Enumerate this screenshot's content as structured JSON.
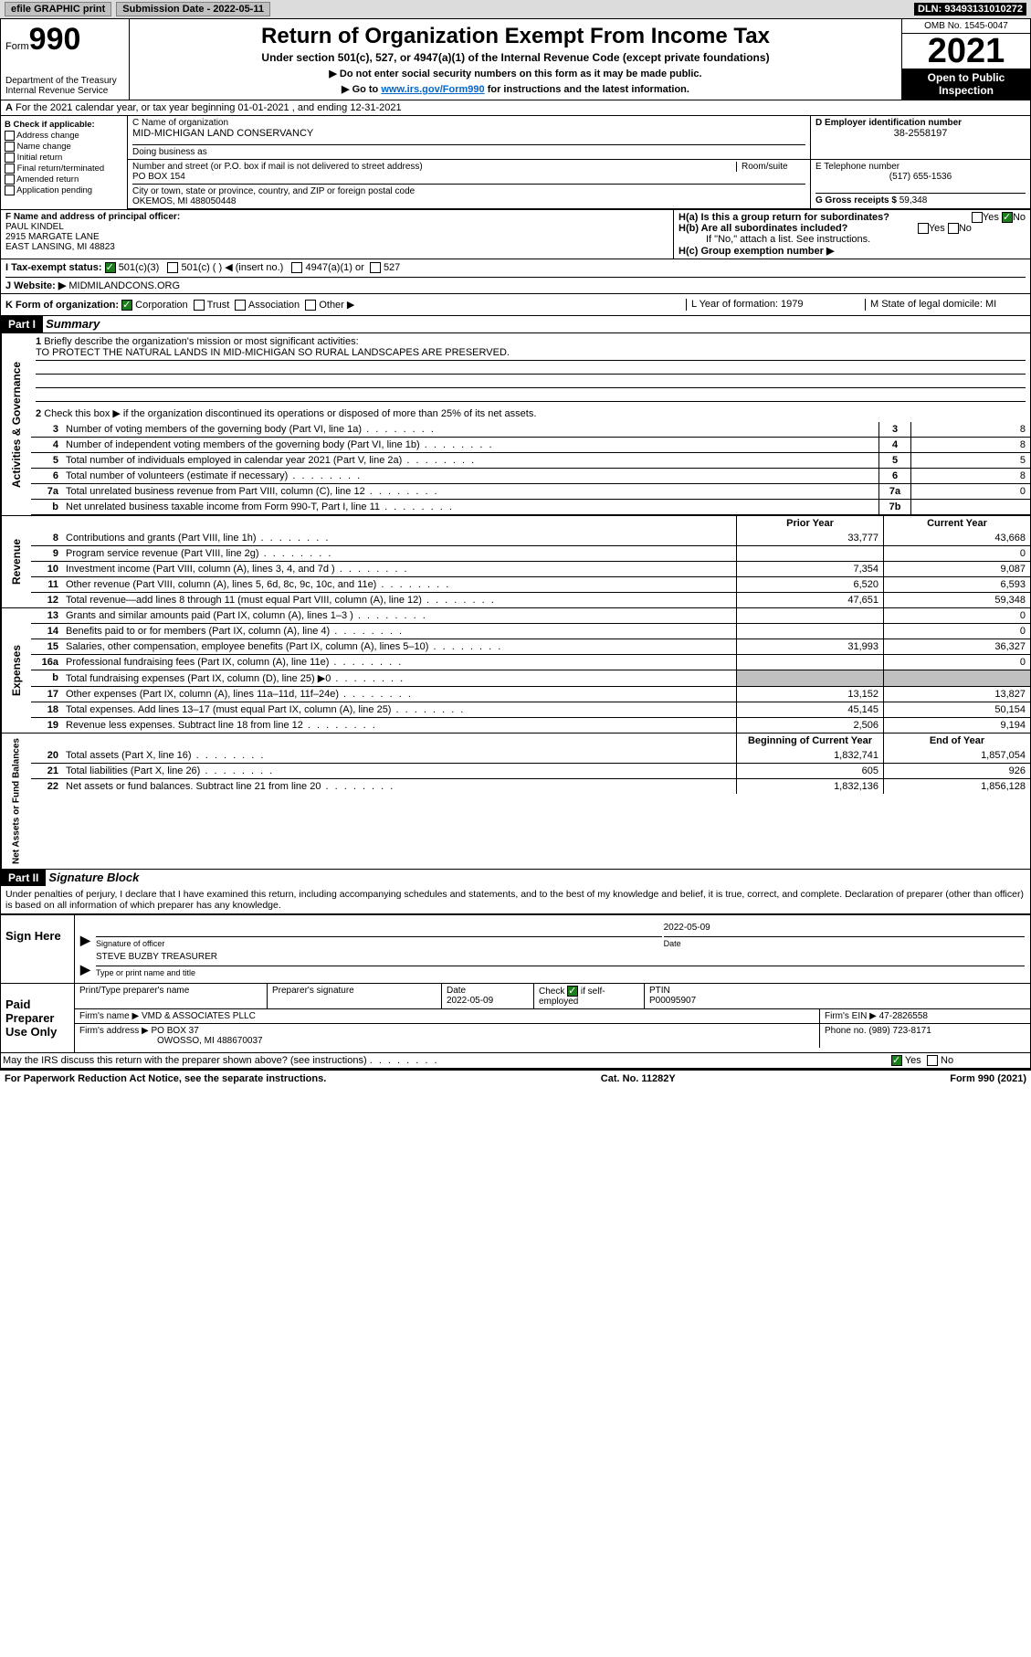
{
  "topbar": {
    "efile": "efile GRAPHIC print",
    "submission": "Submission Date - 2022-05-11",
    "dln": "DLN: 93493131010272"
  },
  "header": {
    "form_label": "Form",
    "form_number": "990",
    "dept": "Department of the Treasury",
    "irs": "Internal Revenue Service",
    "title": "Return of Organization Exempt From Income Tax",
    "sub1": "Under section 501(c), 527, or 4947(a)(1) of the Internal Revenue Code (except private foundations)",
    "sub2": "▶ Do not enter social security numbers on this form as it may be made public.",
    "sub3_pre": "▶ Go to ",
    "sub3_link": "www.irs.gov/Form990",
    "sub3_post": " for instructions and the latest information.",
    "omb": "OMB No. 1545-0047",
    "year": "2021",
    "open": "Open to Public Inspection"
  },
  "rowA": "For the 2021 calendar year, or tax year beginning 01-01-2021   , and ending 12-31-2021",
  "sectionB": {
    "title": "B Check if applicable:",
    "items": [
      "Address change",
      "Name change",
      "Initial return",
      "Final return/terminated",
      "Amended return",
      "Application pending"
    ]
  },
  "sectionC": {
    "name_label": "C Name of organization",
    "name": "MID-MICHIGAN LAND CONSERVANCY",
    "dba_label": "Doing business as",
    "dba": "",
    "addr_label": "Number and street (or P.O. box if mail is not delivered to street address)",
    "room_label": "Room/suite",
    "addr": "PO BOX 154",
    "city_label": "City or town, state or province, country, and ZIP or foreign postal code",
    "city": "OKEMOS, MI  488050448"
  },
  "sectionD": {
    "label": "D Employer identification number",
    "val": "38-2558197"
  },
  "sectionE": {
    "label": "E Telephone number",
    "val": "(517) 655-1536"
  },
  "sectionG": {
    "label": "G Gross receipts $",
    "val": "59,348"
  },
  "sectionF": {
    "label": "F  Name and address of principal officer:",
    "name": "PAUL KINDEL",
    "addr1": "2915 MARGATE LANE",
    "addr2": "EAST LANSING, MI  48823"
  },
  "sectionH": {
    "ha": "H(a)  Is this a group return for subordinates?",
    "hb": "H(b)  Are all subordinates included?",
    "hb_note": "If \"No,\" attach a list. See instructions.",
    "hc": "H(c)  Group exemption number ▶",
    "yes": "Yes",
    "no": "No"
  },
  "rowI": {
    "label": "I   Tax-exempt status:",
    "opt1": "501(c)(3)",
    "opt2": "501(c) (  ) ◀ (insert no.)",
    "opt3": "4947(a)(1) or",
    "opt4": "527"
  },
  "rowJ": {
    "label": "J   Website: ▶",
    "val": "MIDMILANDCONS.ORG"
  },
  "rowK": {
    "label": "K Form of organization:",
    "opts": [
      "Corporation",
      "Trust",
      "Association",
      "Other ▶"
    ],
    "L": "L Year of formation: 1979",
    "M": "M State of legal domicile: MI"
  },
  "part1": {
    "header": "Part I",
    "title": "Summary",
    "q1": "Briefly describe the organization's mission or most significant activities:",
    "q1_val": "TO PROTECT THE NATURAL LANDS IN MID-MICHIGAN SO RURAL LANDSCAPES ARE PRESERVED.",
    "q2": "Check this box ▶      if the organization discontinued its operations or disposed of more than 25% of its net assets.",
    "rows": [
      {
        "n": "3",
        "t": "Number of voting members of the governing body (Part VI, line 1a)",
        "box": "3",
        "v": "8"
      },
      {
        "n": "4",
        "t": "Number of independent voting members of the governing body (Part VI, line 1b)",
        "box": "4",
        "v": "8"
      },
      {
        "n": "5",
        "t": "Total number of individuals employed in calendar year 2021 (Part V, line 2a)",
        "box": "5",
        "v": "5"
      },
      {
        "n": "6",
        "t": "Total number of volunteers (estimate if necessary)",
        "box": "6",
        "v": "8"
      },
      {
        "n": "7a",
        "t": "Total unrelated business revenue from Part VIII, column (C), line 12",
        "box": "7a",
        "v": "0"
      },
      {
        "n": "b",
        "t": "Net unrelated business taxable income from Form 990-T, Part I, line 11",
        "box": "7b",
        "v": ""
      }
    ],
    "col_prior": "Prior Year",
    "col_current": "Current Year",
    "revenue": [
      {
        "n": "8",
        "t": "Contributions and grants (Part VIII, line 1h)",
        "p": "33,777",
        "c": "43,668"
      },
      {
        "n": "9",
        "t": "Program service revenue (Part VIII, line 2g)",
        "p": "",
        "c": "0"
      },
      {
        "n": "10",
        "t": "Investment income (Part VIII, column (A), lines 3, 4, and 7d )",
        "p": "7,354",
        "c": "9,087"
      },
      {
        "n": "11",
        "t": "Other revenue (Part VIII, column (A), lines 5, 6d, 8c, 9c, 10c, and 11e)",
        "p": "6,520",
        "c": "6,593"
      },
      {
        "n": "12",
        "t": "Total revenue—add lines 8 through 11 (must equal Part VIII, column (A), line 12)",
        "p": "47,651",
        "c": "59,348"
      }
    ],
    "expenses": [
      {
        "n": "13",
        "t": "Grants and similar amounts paid (Part IX, column (A), lines 1–3 )",
        "p": "",
        "c": "0"
      },
      {
        "n": "14",
        "t": "Benefits paid to or for members (Part IX, column (A), line 4)",
        "p": "",
        "c": "0"
      },
      {
        "n": "15",
        "t": "Salaries, other compensation, employee benefits (Part IX, column (A), lines 5–10)",
        "p": "31,993",
        "c": "36,327"
      },
      {
        "n": "16a",
        "t": "Professional fundraising fees (Part IX, column (A), line 11e)",
        "p": "",
        "c": "0"
      },
      {
        "n": "b",
        "t": "Total fundraising expenses (Part IX, column (D), line 25) ▶0",
        "p": "shaded",
        "c": "shaded"
      },
      {
        "n": "17",
        "t": "Other expenses (Part IX, column (A), lines 11a–11d, 11f–24e)",
        "p": "13,152",
        "c": "13,827"
      },
      {
        "n": "18",
        "t": "Total expenses. Add lines 13–17 (must equal Part IX, column (A), line 25)",
        "p": "45,145",
        "c": "50,154"
      },
      {
        "n": "19",
        "t": "Revenue less expenses. Subtract line 18 from line 12",
        "p": "2,506",
        "c": "9,194"
      }
    ],
    "col_beg": "Beginning of Current Year",
    "col_end": "End of Year",
    "netassets": [
      {
        "n": "20",
        "t": "Total assets (Part X, line 16)",
        "p": "1,832,741",
        "c": "1,857,054"
      },
      {
        "n": "21",
        "t": "Total liabilities (Part X, line 26)",
        "p": "605",
        "c": "926"
      },
      {
        "n": "22",
        "t": "Net assets or fund balances. Subtract line 21 from line 20",
        "p": "1,832,136",
        "c": "1,856,128"
      }
    ],
    "tabs": {
      "gov": "Activities & Governance",
      "rev": "Revenue",
      "exp": "Expenses",
      "net": "Net Assets or Fund Balances"
    }
  },
  "part2": {
    "header": "Part II",
    "title": "Signature Block",
    "penalties": "Under penalties of perjury, I declare that I have examined this return, including accompanying schedules and statements, and to the best of my knowledge and belief, it is true, correct, and complete. Declaration of preparer (other than officer) is based on all information of which preparer has any knowledge.",
    "sign_here": "Sign Here",
    "sig_date": "2022-05-09",
    "sig_officer_lbl": "Signature of officer",
    "sig_date_lbl": "Date",
    "sig_name": "STEVE BUZBY TREASURER",
    "sig_name_lbl": "Type or print name and title",
    "paid": "Paid Preparer Use Only",
    "prep_name_lbl": "Print/Type preparer's name",
    "prep_sig_lbl": "Preparer's signature",
    "prep_date_lbl": "Date",
    "prep_date": "2022-05-09",
    "prep_check_lbl": "Check       if self-employed",
    "ptin_lbl": "PTIN",
    "ptin": "P00095907",
    "firm_name_lbl": "Firm's name    ▶",
    "firm_name": "VMD & ASSOCIATES PLLC",
    "firm_ein_lbl": "Firm's EIN ▶",
    "firm_ein": "47-2826558",
    "firm_addr_lbl": "Firm's address ▶",
    "firm_addr": "PO BOX 37",
    "firm_city": "OWOSSO, MI  488670037",
    "phone_lbl": "Phone no.",
    "phone": "(989) 723-8171",
    "discuss": "May the IRS discuss this return with the preparer shown above? (see instructions)",
    "yes": "Yes",
    "no": "No"
  },
  "footer": {
    "left": "For Paperwork Reduction Act Notice, see the separate instructions.",
    "mid": "Cat. No. 11282Y",
    "right": "Form 990 (2021)"
  }
}
